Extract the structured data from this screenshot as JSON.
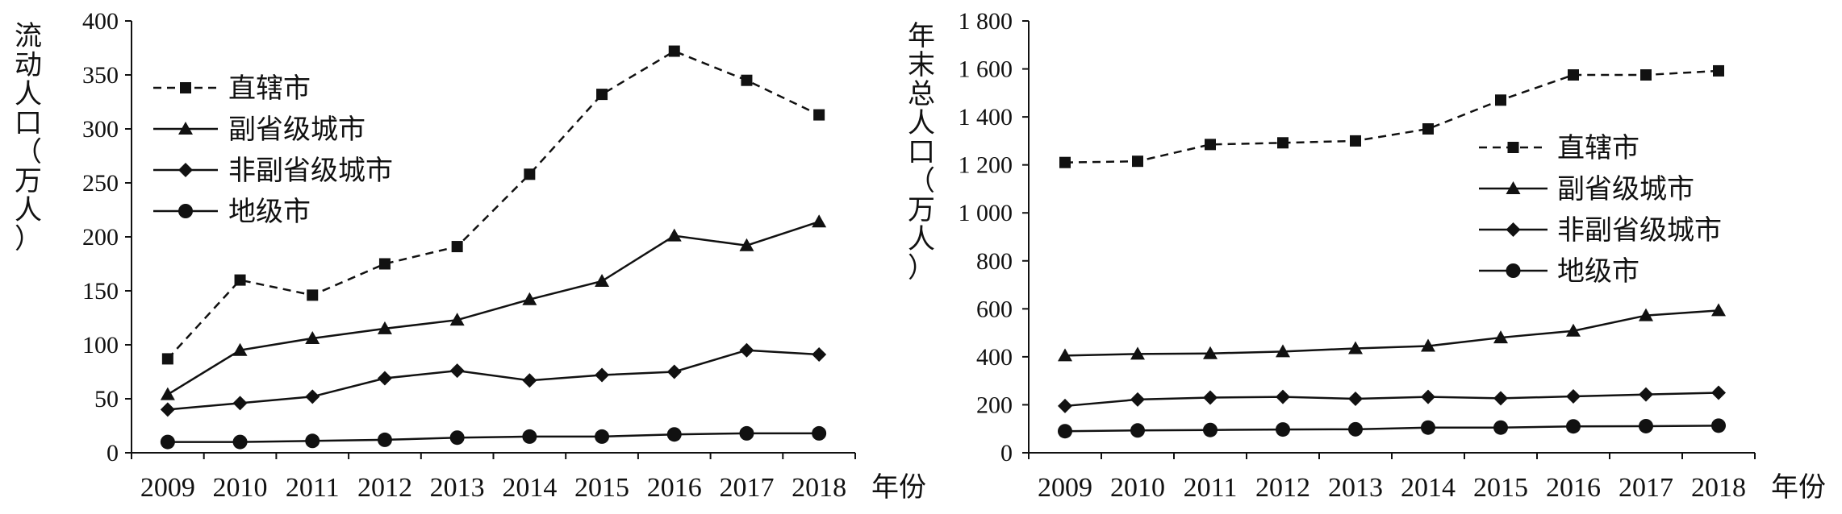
{
  "chart_data": [
    {
      "type": "line",
      "xlabel": "年份",
      "ylabel": "流动人口（万人）",
      "x": [
        "2009",
        "2010",
        "2011",
        "2012",
        "2013",
        "2014",
        "2015",
        "2016",
        "2017",
        "2018"
      ],
      "ylim": [
        0,
        400
      ],
      "yticks": [
        "0",
        "50",
        "100",
        "150",
        "200",
        "250",
        "300",
        "350",
        "400"
      ],
      "legend_position": "top-left",
      "series": [
        {
          "name": "直辖市",
          "marker": "square",
          "dashed": true,
          "values": [
            87,
            160,
            146,
            175,
            191,
            258,
            332,
            372,
            345,
            313
          ]
        },
        {
          "name": "副省级城市",
          "marker": "triangle",
          "dashed": false,
          "values": [
            54,
            95,
            106,
            115,
            123,
            142,
            159,
            201,
            192,
            214
          ]
        },
        {
          "name": "非副省级城市",
          "marker": "diamond",
          "dashed": false,
          "values": [
            40,
            46,
            52,
            69,
            76,
            67,
            72,
            75,
            95,
            91
          ]
        },
        {
          "name": "地级市",
          "marker": "circle",
          "dashed": false,
          "values": [
            10,
            10,
            11,
            12,
            14,
            15,
            15,
            17,
            18,
            18
          ]
        }
      ]
    },
    {
      "type": "line",
      "xlabel": "年份",
      "ylabel": "年末总人口（万人）",
      "x": [
        "2009",
        "2010",
        "2011",
        "2012",
        "2013",
        "2014",
        "2015",
        "2016",
        "2017",
        "2018"
      ],
      "ylim": [
        0,
        1800
      ],
      "yticks": [
        "0",
        "200",
        "400",
        "600",
        "800",
        "1 000",
        "1 200",
        "1 400",
        "1 600",
        "1 800"
      ],
      "legend_position": "center-right",
      "series": [
        {
          "name": "直辖市",
          "marker": "square",
          "dashed": true,
          "values": [
            1210,
            1215,
            1285,
            1292,
            1300,
            1350,
            1470,
            1575,
            1575,
            1592
          ]
        },
        {
          "name": "副省级城市",
          "marker": "triangle",
          "dashed": false,
          "values": [
            405,
            412,
            414,
            422,
            435,
            445,
            480,
            508,
            572,
            593
          ]
        },
        {
          "name": "非副省级城市",
          "marker": "diamond",
          "dashed": false,
          "values": [
            195,
            222,
            230,
            233,
            225,
            233,
            227,
            235,
            243,
            250
          ]
        },
        {
          "name": "地级市",
          "marker": "circle",
          "dashed": false,
          "values": [
            90,
            93,
            95,
            97,
            98,
            105,
            105,
            110,
            111,
            113
          ]
        }
      ]
    }
  ]
}
